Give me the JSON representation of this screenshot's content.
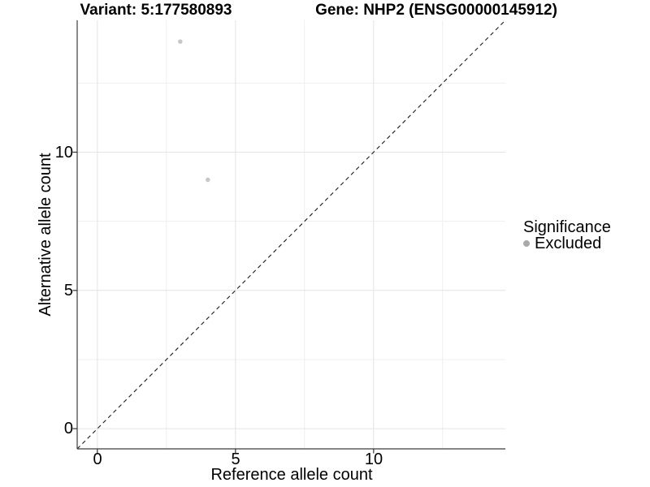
{
  "figure": {
    "title_left": "Variant: 5:177580893",
    "title_right": "Gene: NHP2 (ENSG00000145912)"
  },
  "axes": {
    "x": {
      "title": "Reference allele count",
      "tick_labels": [
        "0",
        "5",
        "10"
      ]
    },
    "y": {
      "title": "Alternative allele count",
      "tick_labels": [
        "0",
        "5",
        "10"
      ]
    }
  },
  "legend": {
    "title": "Significance",
    "items": [
      {
        "label": "Excluded",
        "marker_color": "#a9a9a9"
      }
    ]
  },
  "colors": {
    "background": "#ffffff",
    "grid_major": "#e4e4e4",
    "grid_minor": "#efefef",
    "axis_line": "#3c3c3c",
    "tick_mark": "#333333",
    "identity_line": "#1a1a1a",
    "text": "#000000"
  },
  "chart_data": {
    "type": "scatter",
    "title": "Variant: 5:177580893 / Gene: NHP2 (ENSG00000145912)",
    "xlabel": "Reference allele count",
    "ylabel": "Alternative allele count",
    "xlim": [
      -0.73,
      14.77
    ],
    "ylim": [
      -0.73,
      14.77
    ],
    "x_ticks": [
      0,
      5,
      10
    ],
    "y_ticks": [
      0,
      5,
      10
    ],
    "x_minor_grid": [
      2.5,
      7.5,
      12.5
    ],
    "y_minor_grid": [
      2.5,
      7.5,
      12.5
    ],
    "grid": true,
    "legend_position": "right",
    "series": [
      {
        "name": "Excluded",
        "color": "#c7c7c7",
        "marker_size": 5.5,
        "points": [
          {
            "x": 3,
            "y": 14
          },
          {
            "x": 4,
            "y": 9
          }
        ]
      }
    ],
    "reference_line": {
      "type": "identity",
      "equation": "y = x",
      "style": "dashed",
      "color": "#1a1a1a"
    }
  }
}
